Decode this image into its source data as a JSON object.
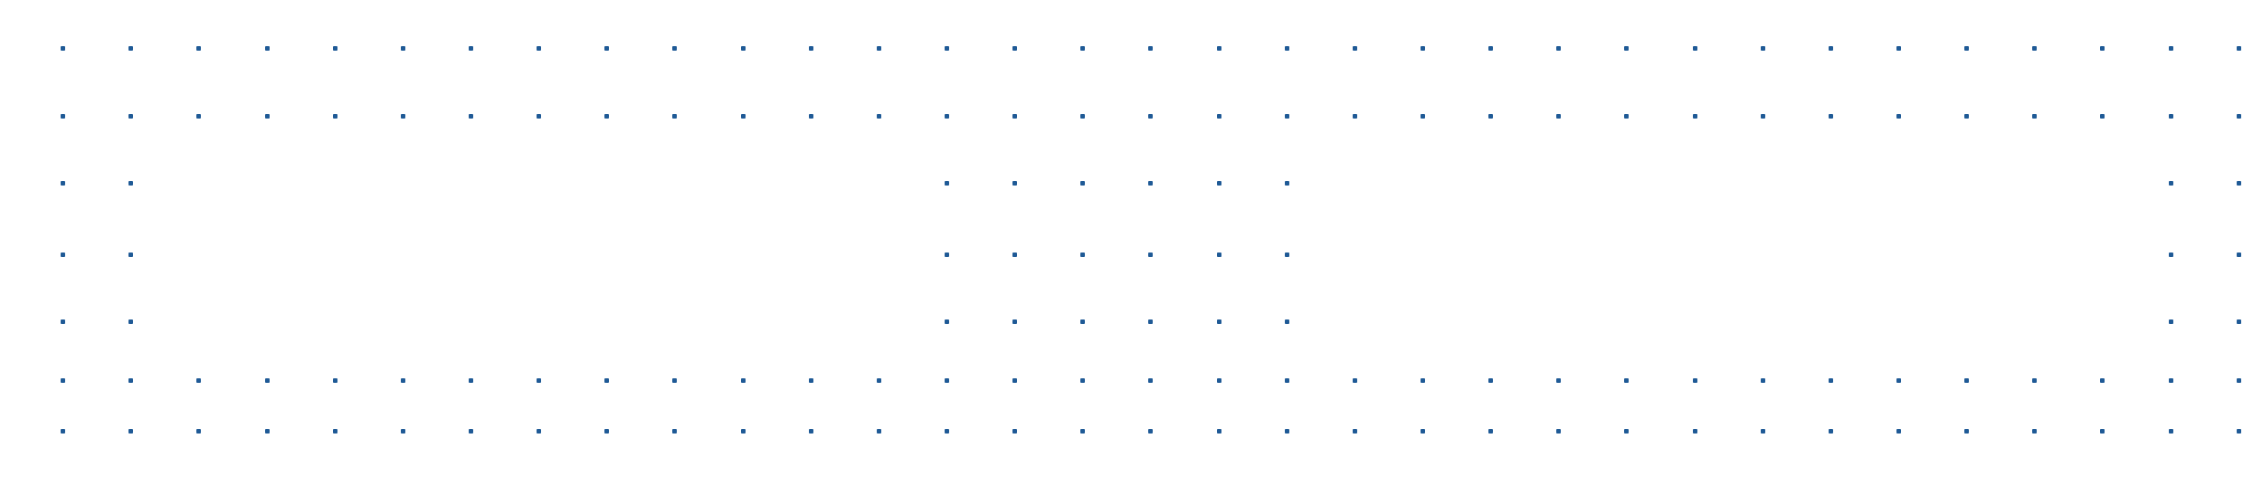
{
  "dot_color": "#1f5a96",
  "background_color": "#ffffff"
}
